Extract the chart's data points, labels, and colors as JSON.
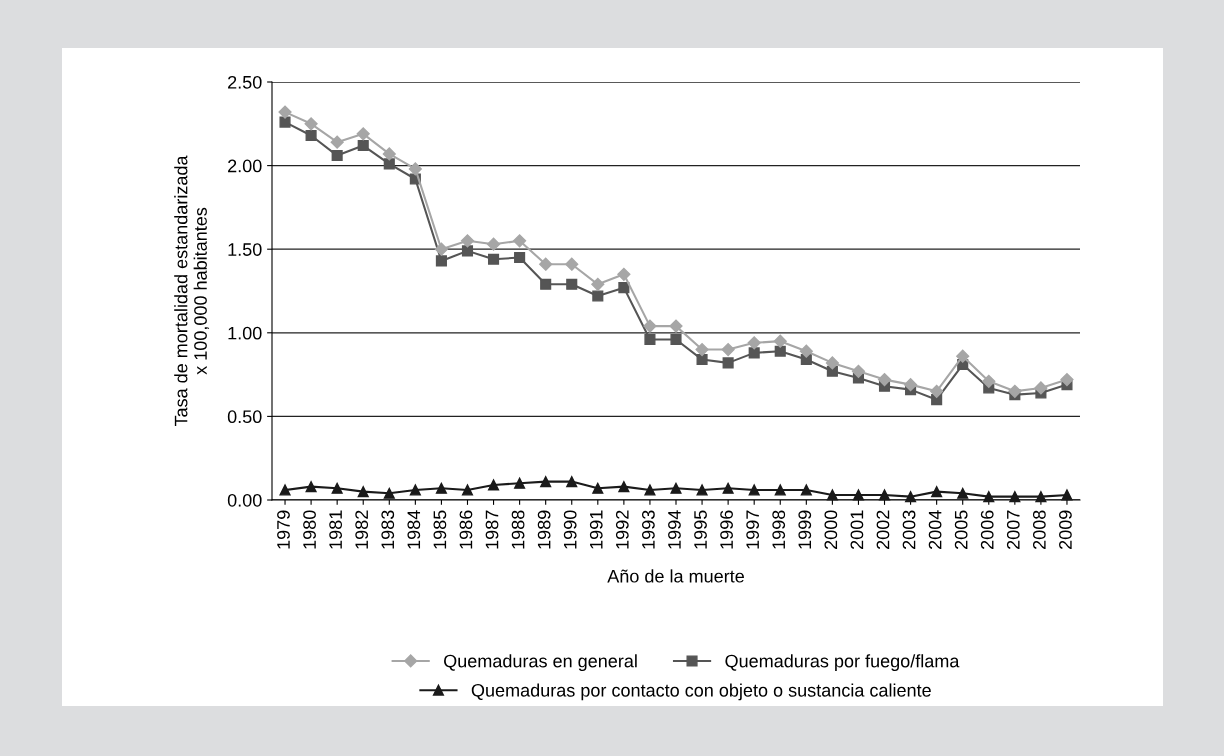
{
  "chart_data": {
    "type": "line",
    "xlabel": "Año de la muerte",
    "ylabel": "Tasa de mortalidad estandarizada\nx 100,000 habitantes",
    "categories": [
      "1979",
      "1980",
      "1981",
      "1982",
      "1983",
      "1984",
      "1985",
      "1986",
      "1987",
      "1988",
      "1989",
      "1990",
      "1991",
      "1992",
      "1993",
      "1994",
      "1995",
      "1996",
      "1997",
      "1998",
      "1999",
      "2000",
      "2001",
      "2002",
      "2003",
      "2004",
      "2005",
      "2006",
      "2007",
      "2008",
      "2009"
    ],
    "series": [
      {
        "name": "Quemaduras en general",
        "color": "#a6a6a6",
        "marker": "diamond",
        "values": [
          2.32,
          2.25,
          2.14,
          2.19,
          2.07,
          1.98,
          1.5,
          1.55,
          1.53,
          1.55,
          1.41,
          1.41,
          1.29,
          1.35,
          1.04,
          1.04,
          0.9,
          0.9,
          0.94,
          0.95,
          0.89,
          0.82,
          0.77,
          0.72,
          0.69,
          0.65,
          0.86,
          0.71,
          0.65,
          0.67,
          0.72
        ]
      },
      {
        "name": "Quemaduras por fuego/flama",
        "color": "#555555",
        "marker": "square",
        "values": [
          2.26,
          2.18,
          2.06,
          2.12,
          2.01,
          1.92,
          1.43,
          1.49,
          1.44,
          1.45,
          1.29,
          1.29,
          1.22,
          1.27,
          0.96,
          0.96,
          0.84,
          0.82,
          0.88,
          0.89,
          0.84,
          0.77,
          0.73,
          0.68,
          0.66,
          0.6,
          0.81,
          0.67,
          0.63,
          0.64,
          0.69
        ]
      },
      {
        "name": "Quemaduras por contacto con objeto o sustancia caliente",
        "color": "#1a1a1a",
        "marker": "triangle",
        "values": [
          0.06,
          0.08,
          0.07,
          0.05,
          0.04,
          0.06,
          0.07,
          0.06,
          0.09,
          0.1,
          0.11,
          0.11,
          0.07,
          0.08,
          0.06,
          0.07,
          0.06,
          0.07,
          0.06,
          0.06,
          0.06,
          0.03,
          0.03,
          0.03,
          0.02,
          0.05,
          0.04,
          0.02,
          0.02,
          0.02,
          0.03
        ]
      }
    ],
    "ylim": [
      0,
      2.5
    ],
    "yticks": [
      {
        "value": 0,
        "label": "0.00"
      },
      {
        "value": 0.5,
        "label": "0.50"
      },
      {
        "value": 1,
        "label": "1.00"
      },
      {
        "value": 1.5,
        "label": "1.50"
      },
      {
        "value": 2,
        "label": "2.00"
      },
      {
        "value": 2.5,
        "label": "2.50"
      }
    ],
    "grid": "y",
    "legend": "bottom",
    "line_style": "solid"
  }
}
